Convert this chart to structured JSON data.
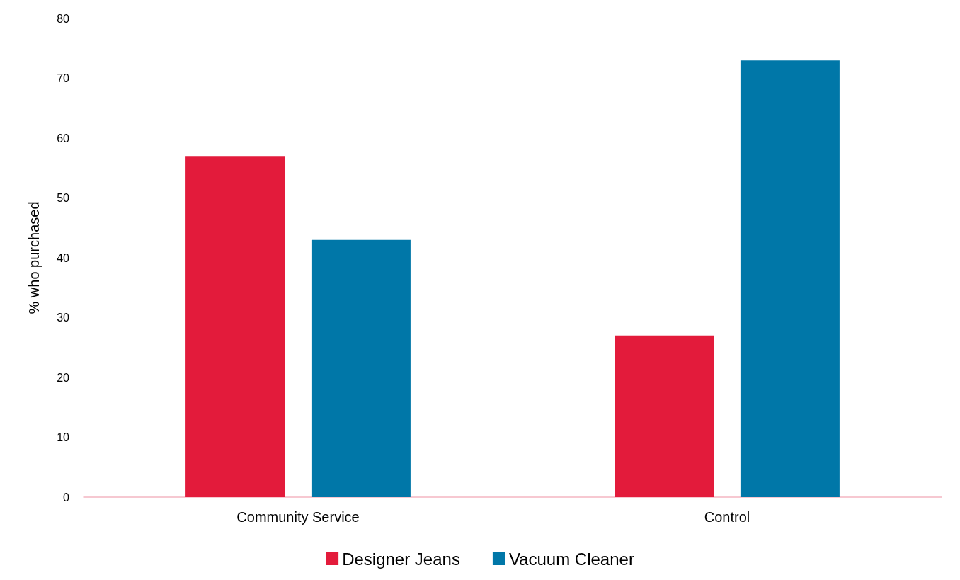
{
  "chart_data": {
    "type": "bar",
    "ylabel": "% who purchased",
    "categories": [
      "Community Service",
      "Control"
    ],
    "series": [
      {
        "name": "Designer Jeans",
        "color": "#e31b3b",
        "values": [
          57,
          27
        ]
      },
      {
        "name": "Vacuum Cleaner",
        "color": "#0077a8",
        "values": [
          43,
          73
        ]
      }
    ],
    "ylim": [
      0,
      80
    ],
    "yticks": [
      0,
      10,
      20,
      30,
      40,
      50,
      60,
      70,
      80
    ],
    "grid": false,
    "legend": "bottom"
  }
}
